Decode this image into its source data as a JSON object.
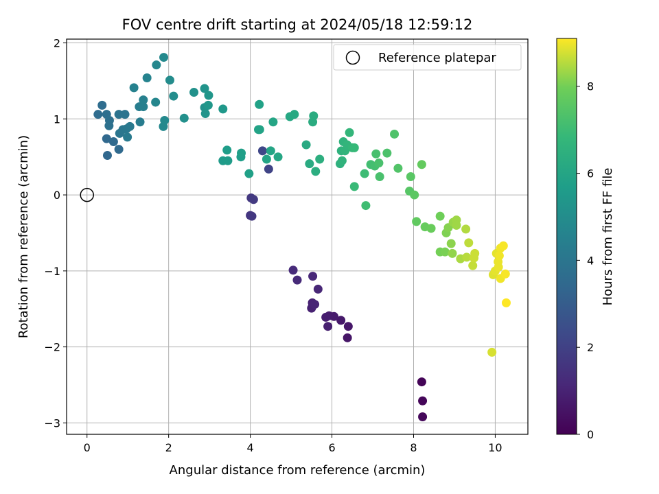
{
  "chart_data": {
    "type": "scatter",
    "title": "FOV centre drift starting at 2024/05/18 12:59:12",
    "xlabel": "Angular distance from reference (arcmin)",
    "ylabel": "Rotation from reference (arcmin)",
    "xlim": [
      -0.5,
      10.8
    ],
    "ylim": [
      -3.15,
      2.05
    ],
    "x_ticks": [
      0,
      2,
      4,
      6,
      8,
      10
    ],
    "x_tick_labels": [
      "0",
      "2",
      "4",
      "6",
      "8",
      "10"
    ],
    "y_ticks": [
      -3,
      -2,
      -1,
      0,
      1,
      2
    ],
    "y_tick_labels": [
      "−3",
      "−2",
      "−1",
      "0",
      "1",
      "2"
    ],
    "grid": true,
    "legend": {
      "placement": "top-right",
      "label": "Reference platepar"
    },
    "reference_point": {
      "x": 0,
      "y": 0,
      "marker": "hollow circle"
    },
    "colorbar": {
      "label": "Hours from first FF file",
      "min": 0,
      "max": 9.1,
      "colormap": "viridis",
      "ticks": [
        0,
        2,
        4,
        6,
        8
      ],
      "tick_labels": [
        "0",
        "2",
        "4",
        "6",
        "8"
      ]
    },
    "series": [
      {
        "colormap": "viridis",
        "points": [
          {
            "x": 8.2,
            "y": -2.46,
            "c": 0.1
          },
          {
            "x": 8.22,
            "y": -2.71,
            "c": 0.15
          },
          {
            "x": 8.22,
            "y": -2.92,
            "c": 0.2
          },
          {
            "x": 6.38,
            "y": -1.88,
            "c": 0.6
          },
          {
            "x": 6.4,
            "y": -1.73,
            "c": 0.65
          },
          {
            "x": 6.22,
            "y": -1.65,
            "c": 0.7
          },
          {
            "x": 6.05,
            "y": -1.6,
            "c": 0.75
          },
          {
            "x": 5.93,
            "y": -1.59,
            "c": 0.8
          },
          {
            "x": 5.85,
            "y": -1.61,
            "c": 0.85
          },
          {
            "x": 5.9,
            "y": -1.73,
            "c": 0.9
          },
          {
            "x": 5.5,
            "y": -1.49,
            "c": 0.95
          },
          {
            "x": 5.52,
            "y": -1.42,
            "c": 1.0
          },
          {
            "x": 5.58,
            "y": -1.44,
            "c": 1.05
          },
          {
            "x": 5.66,
            "y": -1.24,
            "c": 1.1
          },
          {
            "x": 5.53,
            "y": -1.07,
            "c": 1.15
          },
          {
            "x": 5.15,
            "y": -1.12,
            "c": 1.2
          },
          {
            "x": 5.05,
            "y": -0.99,
            "c": 1.25
          },
          {
            "x": 4.0,
            "y": -0.27,
            "c": 1.6
          },
          {
            "x": 4.04,
            "y": -0.28,
            "c": 1.65
          },
          {
            "x": 4.02,
            "y": -0.04,
            "c": 1.7
          },
          {
            "x": 4.08,
            "y": -0.06,
            "c": 1.75
          },
          {
            "x": 4.45,
            "y": 0.34,
            "c": 2.1
          },
          {
            "x": 4.3,
            "y": 0.58,
            "c": 2.2
          },
          {
            "x": 0.5,
            "y": 0.52,
            "c": 3.4
          },
          {
            "x": 0.48,
            "y": 0.74,
            "c": 3.45
          },
          {
            "x": 0.65,
            "y": 0.7,
            "c": 3.5
          },
          {
            "x": 0.78,
            "y": 0.6,
            "c": 3.5
          },
          {
            "x": 0.27,
            "y": 1.06,
            "c": 3.6
          },
          {
            "x": 0.37,
            "y": 1.18,
            "c": 3.65
          },
          {
            "x": 0.48,
            "y": 1.06,
            "c": 3.7
          },
          {
            "x": 0.55,
            "y": 0.98,
            "c": 3.75
          },
          {
            "x": 0.54,
            "y": 0.91,
            "c": 3.8
          },
          {
            "x": 0.78,
            "y": 1.06,
            "c": 3.9
          },
          {
            "x": 0.93,
            "y": 1.06,
            "c": 3.95
          },
          {
            "x": 0.8,
            "y": 0.81,
            "c": 4.0
          },
          {
            "x": 0.88,
            "y": 0.86,
            "c": 4.05
          },
          {
            "x": 0.97,
            "y": 0.87,
            "c": 4.1
          },
          {
            "x": 1.05,
            "y": 0.9,
            "c": 4.15
          },
          {
            "x": 0.99,
            "y": 0.76,
            "c": 4.2
          },
          {
            "x": 1.3,
            "y": 0.96,
            "c": 4.3
          },
          {
            "x": 1.28,
            "y": 1.16,
            "c": 4.35
          },
          {
            "x": 1.38,
            "y": 1.16,
            "c": 4.4
          },
          {
            "x": 1.38,
            "y": 1.25,
            "c": 4.45
          },
          {
            "x": 1.15,
            "y": 1.41,
            "c": 4.5
          },
          {
            "x": 1.47,
            "y": 1.54,
            "c": 4.6
          },
          {
            "x": 1.68,
            "y": 1.22,
            "c": 4.7
          },
          {
            "x": 1.7,
            "y": 1.71,
            "c": 4.75
          },
          {
            "x": 1.87,
            "y": 0.9,
            "c": 4.8
          },
          {
            "x": 1.9,
            "y": 0.98,
            "c": 4.85
          },
          {
            "x": 1.88,
            "y": 1.81,
            "c": 4.85
          },
          {
            "x": 2.03,
            "y": 1.51,
            "c": 4.95
          },
          {
            "x": 2.12,
            "y": 1.3,
            "c": 5.0
          },
          {
            "x": 2.38,
            "y": 1.01,
            "c": 5.1
          },
          {
            "x": 2.62,
            "y": 1.35,
            "c": 5.15
          },
          {
            "x": 2.88,
            "y": 1.15,
            "c": 5.2
          },
          {
            "x": 2.9,
            "y": 1.07,
            "c": 5.25
          },
          {
            "x": 2.88,
            "y": 1.4,
            "c": 5.3
          },
          {
            "x": 2.98,
            "y": 1.31,
            "c": 5.35
          },
          {
            "x": 2.97,
            "y": 1.18,
            "c": 5.4
          },
          {
            "x": 3.33,
            "y": 1.13,
            "c": 5.45
          },
          {
            "x": 3.33,
            "y": 0.45,
            "c": 5.55
          },
          {
            "x": 3.45,
            "y": 0.45,
            "c": 5.6
          },
          {
            "x": 3.43,
            "y": 0.59,
            "c": 5.65
          },
          {
            "x": 3.77,
            "y": 0.5,
            "c": 5.7
          },
          {
            "x": 3.78,
            "y": 0.55,
            "c": 5.75
          },
          {
            "x": 3.97,
            "y": 0.28,
            "c": 5.8
          },
          {
            "x": 4.2,
            "y": 0.86,
            "c": 5.85
          },
          {
            "x": 4.22,
            "y": 1.19,
            "c": 5.85
          },
          {
            "x": 4.23,
            "y": 0.86,
            "c": 5.9
          },
          {
            "x": 4.4,
            "y": 0.47,
            "c": 5.95
          },
          {
            "x": 4.5,
            "y": 0.58,
            "c": 6.0
          },
          {
            "x": 4.56,
            "y": 0.96,
            "c": 6.0
          },
          {
            "x": 4.68,
            "y": 0.5,
            "c": 6.05
          },
          {
            "x": 4.97,
            "y": 1.03,
            "c": 6.1
          },
          {
            "x": 5.08,
            "y": 1.06,
            "c": 6.15
          },
          {
            "x": 5.37,
            "y": 0.66,
            "c": 6.2
          },
          {
            "x": 5.45,
            "y": 0.41,
            "c": 6.25
          },
          {
            "x": 5.53,
            "y": 0.96,
            "c": 6.3
          },
          {
            "x": 5.55,
            "y": 1.04,
            "c": 6.3
          },
          {
            "x": 5.6,
            "y": 0.31,
            "c": 6.35
          },
          {
            "x": 5.7,
            "y": 0.47,
            "c": 6.4
          },
          {
            "x": 6.2,
            "y": 0.41,
            "c": 6.5
          },
          {
            "x": 6.23,
            "y": 0.58,
            "c": 6.55
          },
          {
            "x": 6.25,
            "y": 0.45,
            "c": 6.6
          },
          {
            "x": 6.28,
            "y": 0.7,
            "c": 6.6
          },
          {
            "x": 6.32,
            "y": 0.58,
            "c": 6.65
          },
          {
            "x": 6.37,
            "y": 0.66,
            "c": 6.7
          },
          {
            "x": 6.43,
            "y": 0.82,
            "c": 6.75
          },
          {
            "x": 6.5,
            "y": 0.62,
            "c": 6.8
          },
          {
            "x": 6.55,
            "y": 0.62,
            "c": 6.85
          },
          {
            "x": 6.55,
            "y": 0.11,
            "c": 6.9
          },
          {
            "x": 6.8,
            "y": 0.28,
            "c": 7.0
          },
          {
            "x": 6.83,
            "y": -0.14,
            "c": 7.05
          },
          {
            "x": 6.95,
            "y": 0.4,
            "c": 7.1
          },
          {
            "x": 7.05,
            "y": 0.38,
            "c": 7.15
          },
          {
            "x": 7.08,
            "y": 0.54,
            "c": 7.2
          },
          {
            "x": 7.15,
            "y": 0.42,
            "c": 7.25
          },
          {
            "x": 7.17,
            "y": 0.24,
            "c": 7.25
          },
          {
            "x": 7.35,
            "y": 0.55,
            "c": 7.3
          },
          {
            "x": 7.53,
            "y": 0.8,
            "c": 7.35
          },
          {
            "x": 7.62,
            "y": 0.35,
            "c": 7.4
          },
          {
            "x": 7.9,
            "y": 0.05,
            "c": 7.5
          },
          {
            "x": 7.93,
            "y": 0.24,
            "c": 7.55
          },
          {
            "x": 8.02,
            "y": 0.0,
            "c": 7.6
          },
          {
            "x": 8.07,
            "y": -0.35,
            "c": 7.7
          },
          {
            "x": 8.2,
            "y": 0.4,
            "c": 7.75
          },
          {
            "x": 8.28,
            "y": -0.42,
            "c": 7.8
          },
          {
            "x": 8.43,
            "y": -0.44,
            "c": 7.85
          },
          {
            "x": 8.65,
            "y": -0.28,
            "c": 7.95
          },
          {
            "x": 8.65,
            "y": -0.75,
            "c": 8.0
          },
          {
            "x": 8.77,
            "y": -0.75,
            "c": 8.05
          },
          {
            "x": 8.8,
            "y": -0.5,
            "c": 8.1
          },
          {
            "x": 8.85,
            "y": -0.43,
            "c": 8.15
          },
          {
            "x": 8.92,
            "y": -0.64,
            "c": 8.2
          },
          {
            "x": 8.95,
            "y": -0.77,
            "c": 8.25
          },
          {
            "x": 8.97,
            "y": -0.36,
            "c": 8.3
          },
          {
            "x": 9.05,
            "y": -0.33,
            "c": 8.35
          },
          {
            "x": 9.05,
            "y": -0.4,
            "c": 8.35
          },
          {
            "x": 9.15,
            "y": -0.84,
            "c": 8.45
          },
          {
            "x": 9.28,
            "y": -0.45,
            "c": 8.5
          },
          {
            "x": 9.3,
            "y": -0.82,
            "c": 8.55
          },
          {
            "x": 9.35,
            "y": -0.63,
            "c": 8.6
          },
          {
            "x": 9.45,
            "y": -0.93,
            "c": 8.65
          },
          {
            "x": 9.48,
            "y": -0.83,
            "c": 8.7
          },
          {
            "x": 9.5,
            "y": -0.77,
            "c": 8.7
          },
          {
            "x": 9.92,
            "y": -2.07,
            "c": 8.8
          },
          {
            "x": 9.95,
            "y": -1.05,
            "c": 8.85
          },
          {
            "x": 10.0,
            "y": -1.0,
            "c": 8.9
          },
          {
            "x": 10.03,
            "y": -0.77,
            "c": 8.9
          },
          {
            "x": 10.07,
            "y": -0.88,
            "c": 8.95
          },
          {
            "x": 10.08,
            "y": -0.95,
            "c": 8.95
          },
          {
            "x": 10.1,
            "y": -0.8,
            "c": 9.0
          },
          {
            "x": 10.13,
            "y": -0.7,
            "c": 9.0
          },
          {
            "x": 10.13,
            "y": -1.1,
            "c": 9.0
          },
          {
            "x": 10.2,
            "y": -0.67,
            "c": 9.05
          },
          {
            "x": 10.25,
            "y": -1.04,
            "c": 9.05
          },
          {
            "x": 10.27,
            "y": -1.42,
            "c": 9.1
          }
        ]
      }
    ]
  }
}
